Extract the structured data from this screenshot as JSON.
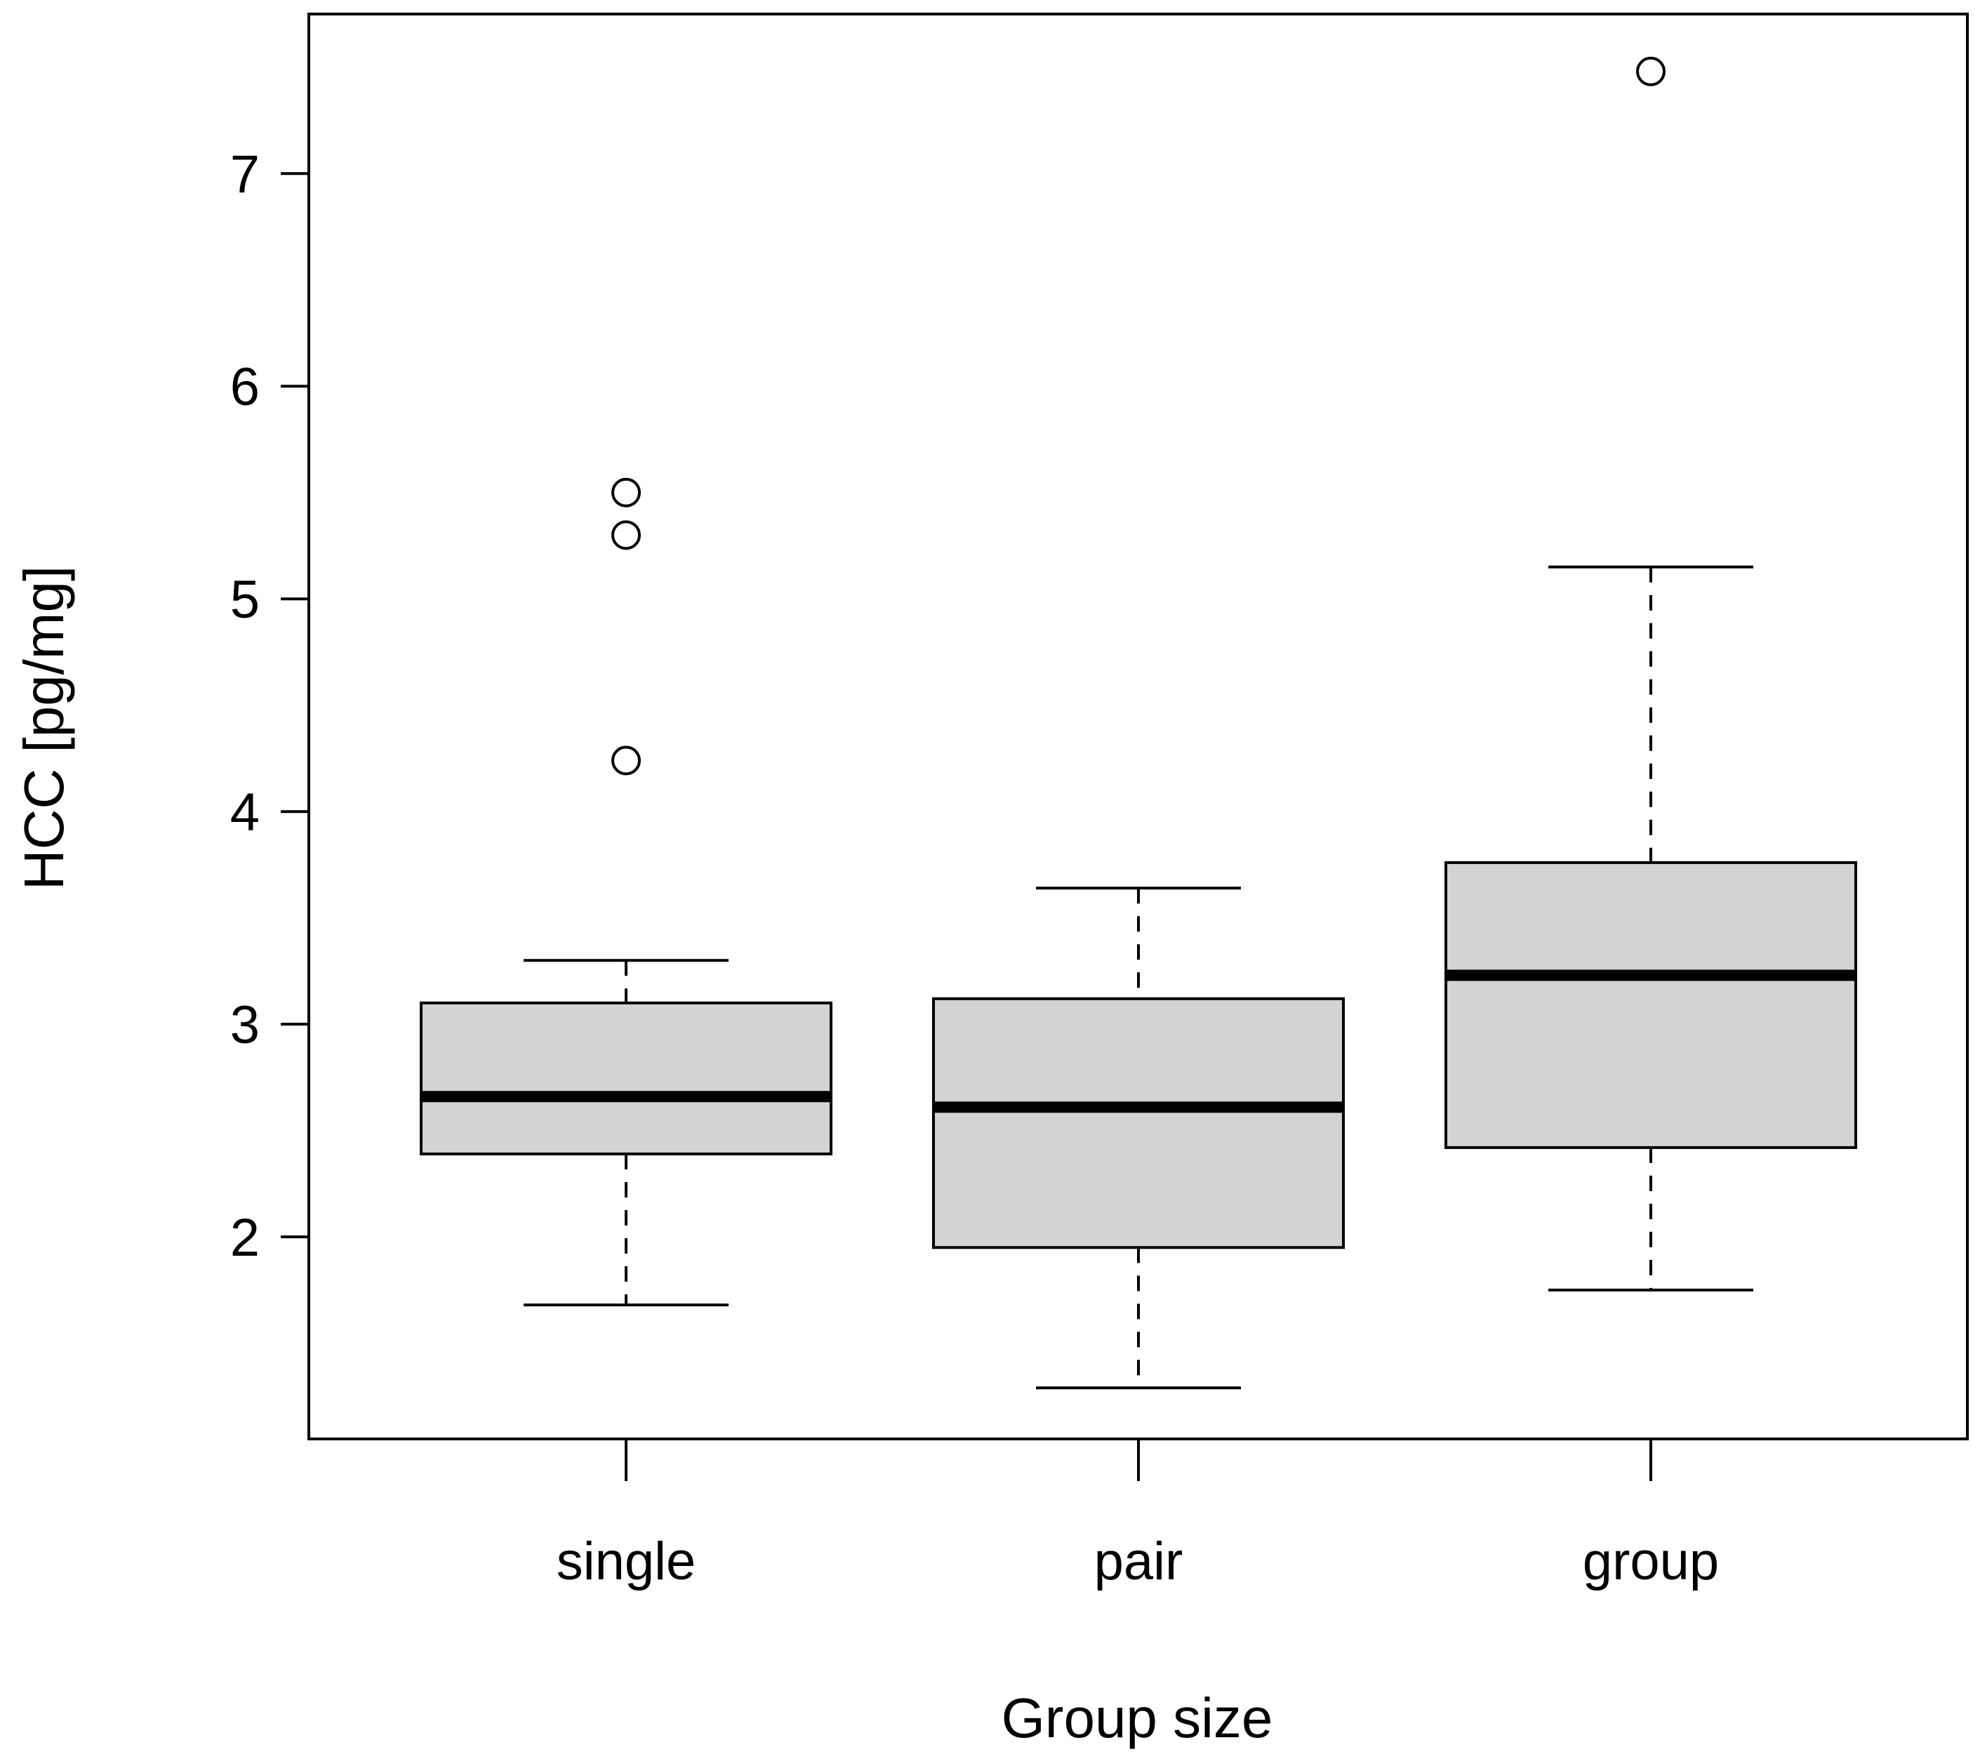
{
  "chart_data": {
    "type": "boxplot",
    "title": "",
    "xlabel": "Group size",
    "ylabel": "HCC [pg/mg]",
    "ylim": [
      1.05,
      7.75
    ],
    "yticks": [
      2,
      3,
      4,
      5,
      6,
      7
    ],
    "ytick_labels": [
      "2",
      "3",
      "4",
      "5",
      "6",
      "7"
    ],
    "categories": [
      "single",
      "pair",
      "group"
    ],
    "boxes": [
      {
        "label": "single",
        "whisker_low": 1.68,
        "q1": 2.39,
        "median": 2.66,
        "q3": 3.1,
        "whisker_high": 3.3,
        "outliers": [
          4.24,
          5.3,
          5.5
        ]
      },
      {
        "label": "pair",
        "whisker_low": 1.29,
        "q1": 1.95,
        "median": 2.61,
        "q3": 3.12,
        "whisker_high": 3.64,
        "outliers": []
      },
      {
        "label": "group",
        "whisker_low": 1.75,
        "q1": 2.42,
        "median": 3.23,
        "q3": 3.76,
        "whisker_high": 5.15,
        "outliers": [
          7.48
        ]
      }
    ],
    "colors": {
      "box_fill": "#d3d3d3",
      "stroke": "#000000"
    },
    "grid": false
  }
}
